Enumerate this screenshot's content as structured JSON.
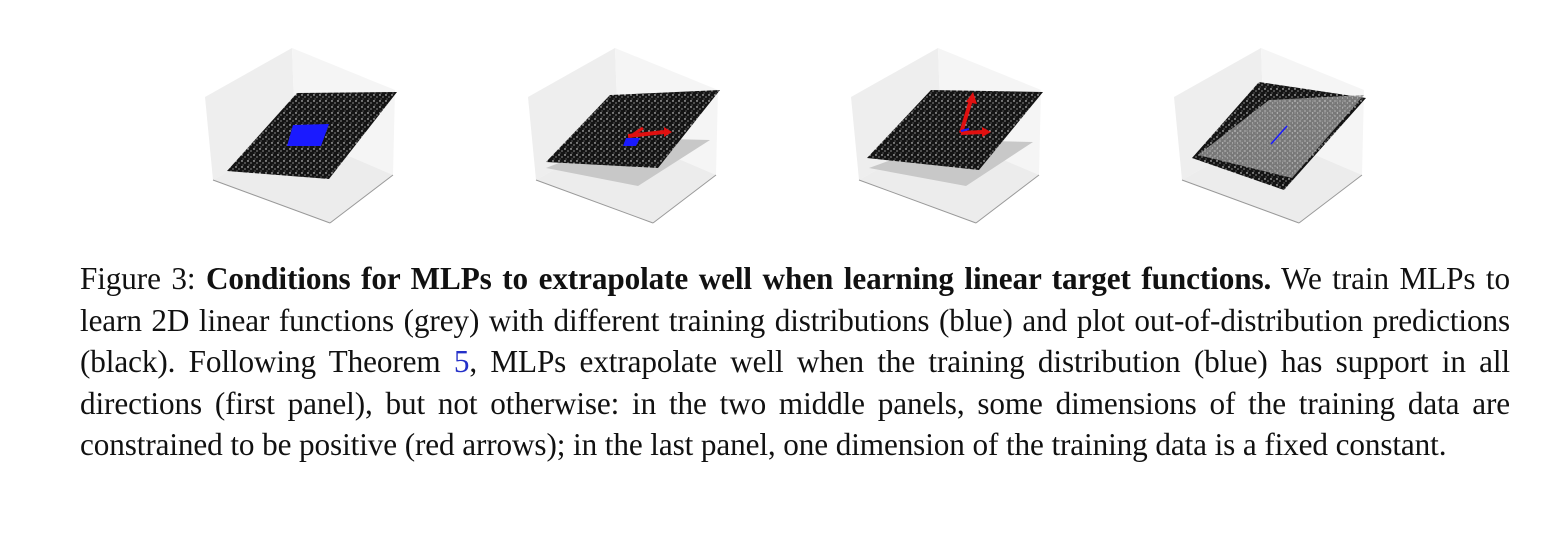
{
  "figure": {
    "panels": [
      {
        "id": "panel-1"
      },
      {
        "id": "panel-2"
      },
      {
        "id": "panel-3"
      },
      {
        "id": "panel-4"
      }
    ],
    "colors": {
      "predictions": "#151515",
      "target": "#c8c8c8",
      "training": "#1a1aff",
      "arrows": "#e01010",
      "box": "#f2f2f2"
    },
    "caption": {
      "label": "Figure 3: ",
      "title": "Conditions for MLPs to extrapolate well when learning linear target functions.",
      "text_before_ref": " We train MLPs to learn 2D linear functions (grey) with different training distributions (blue) and plot out-of-distribution predictions (black). Following Theorem ",
      "ref": "5",
      "text_after_ref": ", MLPs extrapolate well when the training distribution (blue) has support in all directions (first panel), but not otherwise: in the two middle panels, some dimensions of the training data are constrained to be positive (red arrows); in the last panel, one dimension of the training data is a fixed constant."
    }
  }
}
